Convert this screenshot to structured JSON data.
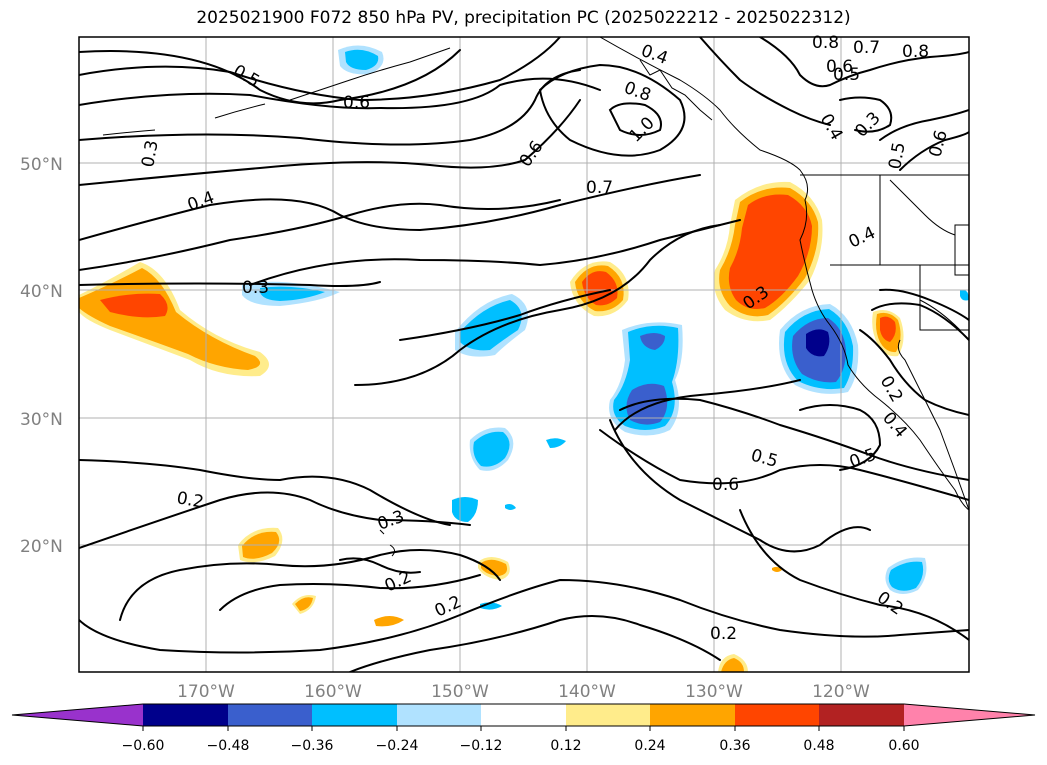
{
  "title": "2025021900 F072 850 hPa PV, precipitation PC (2025022212 - 2025022312)",
  "map": {
    "lon_ticks": [
      "170°W",
      "160°W",
      "150°W",
      "140°W",
      "130°W",
      "120°W"
    ],
    "lat_ticks": [
      "50°N",
      "40°N",
      "30°N",
      "20°N"
    ],
    "contour_labels": [
      "0.5",
      "0.6",
      "0.4",
      "0.8",
      "0.7",
      "0.8",
      "0.6",
      "0.5",
      "0.8",
      "1.0",
      "0.4",
      "0.3",
      "0.5",
      "0.6",
      "0.3",
      "0.6",
      "0.4",
      "0.7",
      "0.4",
      "0.3",
      "0.3",
      "0.2",
      "0.5",
      "0.5",
      "0.4",
      "0.6",
      "0.2",
      "0.3",
      "0.2",
      "0.2",
      "0.2",
      "0.2"
    ],
    "grid": true,
    "coastlines": true
  },
  "colorbar": {
    "ticks": [
      "−0.60",
      "−0.48",
      "−0.36",
      "−0.24",
      "−0.12",
      "0.12",
      "0.24",
      "0.36",
      "0.48",
      "0.60"
    ],
    "levels": [
      -0.6,
      -0.48,
      -0.36,
      -0.24,
      -0.12,
      0.12,
      0.24,
      0.36,
      0.48,
      0.6
    ],
    "colors": [
      "#9932cc",
      "#00008b",
      "#3a5fcd",
      "#00bfff",
      "#b0e2ff",
      "#ffffff",
      "#ffec8b",
      "#ffa500",
      "#ff4500",
      "#b22222",
      "#ff82ab"
    ],
    "extend": "both"
  }
}
